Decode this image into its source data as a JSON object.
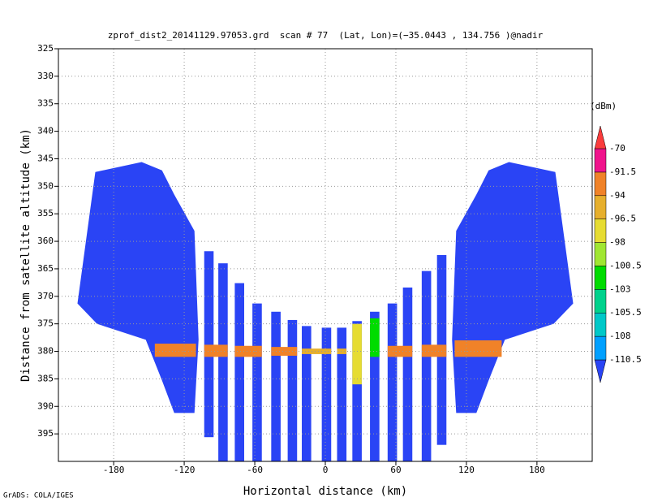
{
  "chart_data": {
    "type": "shaded",
    "title": "zprof_dist2_20141129.97053.grd  scan # 77  (Lat, Lon)=(−35.0443 , 134.756 )@nadir",
    "xlabel": "Horizontal distance (km)",
    "ylabel": "Distance from satellite altitude (km)",
    "footer": "GrADS: COLA/IGES",
    "xlim": [
      -227,
      227
    ],
    "ylim": [
      325,
      400
    ],
    "y_reversed": true,
    "xticks": [
      -180,
      -120,
      -60,
      0,
      60,
      120,
      180
    ],
    "yticks": [
      325,
      330,
      335,
      340,
      345,
      350,
      355,
      360,
      365,
      370,
      375,
      380,
      385,
      390,
      395
    ],
    "grid": true,
    "colorbar_label": "(dBm)",
    "levels": [
      -110.5,
      -108,
      -105.5,
      -103,
      -100.5,
      -98,
      -96.5,
      -94,
      -91.5,
      -70
    ],
    "colors": [
      "#2a44f5",
      "#00a0ff",
      "#00c8c8",
      "#00d28c",
      "#00dc00",
      "#a0e632",
      "#e6dc32",
      "#e6af2d",
      "#f08228",
      "#f0148c",
      "#fa3c3c"
    ],
    "polygons": [
      {
        "points": [
          [
            -210.8,
            371.3
          ],
          [
            -195.6,
            347.4
          ],
          [
            -156.2,
            345.6
          ],
          [
            -138.9,
            347.1
          ],
          [
            -128.5,
            351.5
          ],
          [
            -111.3,
            358.1
          ],
          [
            -107.8,
            377.9
          ],
          [
            -111.3,
            391.2
          ],
          [
            -128.5,
            391.2
          ],
          [
            -138.9,
            385.3
          ],
          [
            -152.7,
            377.9
          ],
          [
            -194.2,
            375.0
          ]
        ],
        "value": -115
      },
      {
        "points": [
          [
            210.8,
            371.3
          ],
          [
            195.6,
            347.4
          ],
          [
            156.2,
            345.6
          ],
          [
            138.9,
            347.1
          ],
          [
            128.5,
            351.5
          ],
          [
            111.3,
            358.1
          ],
          [
            107.8,
            377.9
          ],
          [
            111.3,
            391.2
          ],
          [
            128.5,
            391.2
          ],
          [
            138.9,
            385.3
          ],
          [
            152.7,
            377.9
          ],
          [
            194.2,
            375.0
          ]
        ],
        "value": -115
      }
    ],
    "cells": [
      {
        "x": [
          -103,
          -95
        ],
        "y": [
          361.8,
          395.6
        ],
        "value": -115
      },
      {
        "x": [
          -91,
          -83
        ],
        "y": [
          364.0,
          400
        ],
        "value": -115
      },
      {
        "x": [
          -77,
          -69
        ],
        "y": [
          367.6,
          400
        ],
        "value": -115
      },
      {
        "x": [
          -62,
          -54
        ],
        "y": [
          371.3,
          400
        ],
        "value": -115
      },
      {
        "x": [
          -46,
          -38
        ],
        "y": [
          372.8,
          400
        ],
        "value": -115
      },
      {
        "x": [
          -32,
          -24
        ],
        "y": [
          374.3,
          400
        ],
        "value": -115
      },
      {
        "x": [
          -20,
          -12
        ],
        "y": [
          375.4,
          400
        ],
        "value": -115
      },
      {
        "x": [
          -3,
          5
        ],
        "y": [
          375.7,
          400
        ],
        "value": -115
      },
      {
        "x": [
          10,
          18
        ],
        "y": [
          375.7,
          400
        ],
        "value": -115
      },
      {
        "x": [
          23,
          31
        ],
        "y": [
          374.5,
          400
        ],
        "value": -115
      },
      {
        "x": [
          38,
          46
        ],
        "y": [
          372.8,
          400
        ],
        "value": -115
      },
      {
        "x": [
          53,
          61
        ],
        "y": [
          371.3,
          400
        ],
        "value": -115
      },
      {
        "x": [
          66,
          74
        ],
        "y": [
          368.4,
          400
        ],
        "value": -115
      },
      {
        "x": [
          82,
          90
        ],
        "y": [
          365.4,
          400
        ],
        "value": -115
      },
      {
        "x": [
          95,
          103
        ],
        "y": [
          362.5,
          397
        ],
        "value": -115
      },
      {
        "x": [
          -145,
          -110
        ],
        "y": [
          378.6,
          381.0
        ],
        "value": -92
      },
      {
        "x": [
          -103,
          -83
        ],
        "y": [
          378.8,
          381.0
        ],
        "value": -92
      },
      {
        "x": [
          -77,
          -54
        ],
        "y": [
          379.0,
          381.0
        ],
        "value": -92
      },
      {
        "x": [
          -46,
          -24
        ],
        "y": [
          379.2,
          380.8
        ],
        "value": -93
      },
      {
        "x": [
          -20,
          5
        ],
        "y": [
          379.5,
          380.5
        ],
        "value": -95
      },
      {
        "x": [
          10,
          18
        ],
        "y": [
          379.5,
          380.5
        ],
        "value": -95
      },
      {
        "x": [
          23,
          31
        ],
        "y": [
          375.0,
          386.0
        ],
        "value": -97
      },
      {
        "x": [
          38,
          46
        ],
        "y": [
          374.0,
          381.0
        ],
        "value": -101
      },
      {
        "x": [
          53,
          74
        ],
        "y": [
          379.0,
          381.0
        ],
        "value": -92
      },
      {
        "x": [
          82,
          103
        ],
        "y": [
          378.8,
          381.0
        ],
        "value": -92
      },
      {
        "x": [
          110,
          150
        ],
        "y": [
          378.0,
          381.0
        ],
        "value": -92
      }
    ]
  }
}
